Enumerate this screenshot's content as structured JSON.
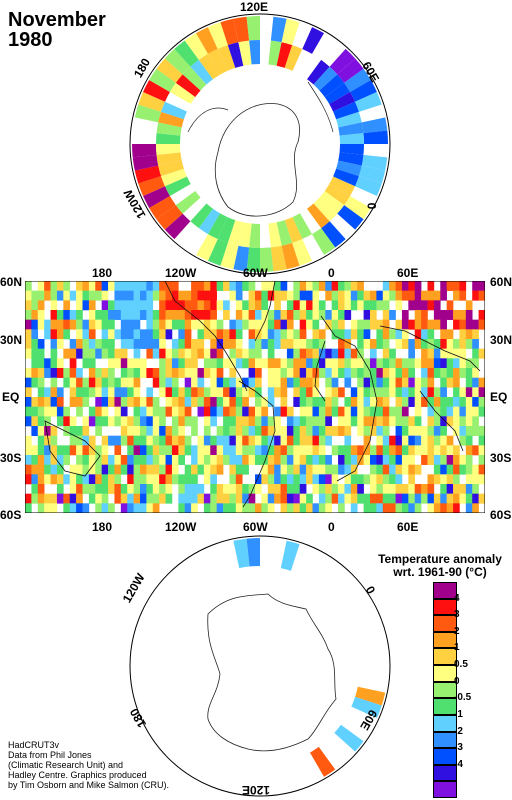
{
  "title": {
    "month": "November",
    "year": "1980"
  },
  "north_labels": {
    "top": "120E",
    "right": "60E",
    "right_low": "0",
    "left": "180",
    "left_low": "120W"
  },
  "south_labels": {
    "bottom": "120E",
    "right": "0",
    "right_low": "60E",
    "left": "120W",
    "left_low": "180"
  },
  "map_axes": {
    "lon_ticks": [
      "180",
      "120W",
      "60W",
      "0",
      "60E"
    ],
    "lat_ticks": [
      "60N",
      "30N",
      "EQ",
      "30S",
      "60S"
    ]
  },
  "legend": {
    "title_line1": "Temperature anomaly",
    "title_line2": "wrt. 1961-90  (°C)",
    "labels": [
      "4",
      "3",
      "2",
      "1",
      "0.5",
      "0",
      "-0.5",
      "-1",
      "-2",
      "-3",
      "-4"
    ],
    "colors": [
      "#a0008c",
      "#ff1010",
      "#ff5a10",
      "#ffa020",
      "#ffd040",
      "#ffff80",
      "#98f070",
      "#50e070",
      "#60d0ff",
      "#3090ff",
      "#0050ff",
      "#3010e0",
      "#8010e0"
    ]
  },
  "credits": [
    "HadCRUT3v",
    "Data from Phil Jones",
    "(Climatic Research Unit) and",
    "Hadley Centre.  Graphics produced",
    "by Tim Osborn and Mike Salmon (CRU)."
  ]
}
